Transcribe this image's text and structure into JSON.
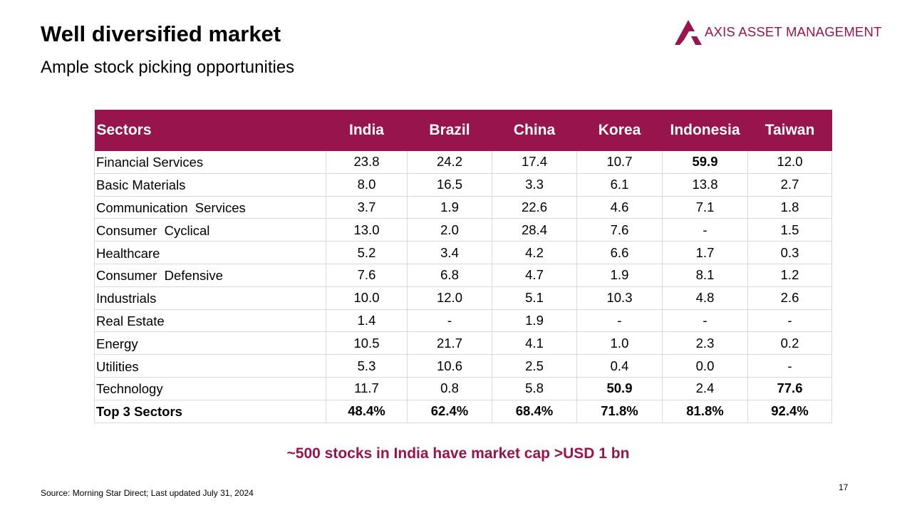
{
  "slide": {
    "title": "Well diversified market",
    "subtitle": "Ample stock picking opportunities",
    "callout": "~500 stocks in India have market cap >USD 1 bn",
    "source": "Source: Morning Star Direct; Last updated July 31, 2024",
    "page_number": "17"
  },
  "logo": {
    "text": "AXIS ASSET MANAGEMENT",
    "color": "#97144d"
  },
  "table": {
    "header_color": "#97144d",
    "columns": [
      "Sectors",
      "India",
      "Brazil",
      "China",
      "Korea",
      "Indonesia",
      "Taiwan"
    ],
    "rows": [
      {
        "cells": [
          "Financial Services",
          "23.8",
          "24.2",
          "17.4",
          "10.7",
          "59.9",
          "12.0"
        ],
        "bold": [
          false,
          false,
          false,
          false,
          false,
          true,
          false
        ]
      },
      {
        "cells": [
          "Basic Materials",
          "8.0",
          "16.5",
          "3.3",
          "6.1",
          "13.8",
          "2.7"
        ],
        "bold": [
          false,
          false,
          false,
          false,
          false,
          false,
          false
        ]
      },
      {
        "cells": [
          "Communication  Services",
          "3.7",
          "1.9",
          "22.6",
          "4.6",
          "7.1",
          "1.8"
        ],
        "bold": [
          false,
          false,
          false,
          false,
          false,
          false,
          false
        ]
      },
      {
        "cells": [
          "Consumer  Cyclical",
          "13.0",
          "2.0",
          "28.4",
          "7.6",
          "-",
          "1.5"
        ],
        "bold": [
          false,
          false,
          false,
          false,
          false,
          false,
          false
        ]
      },
      {
        "cells": [
          "Healthcare",
          "5.2",
          "3.4",
          "4.2",
          "6.6",
          "1.7",
          "0.3"
        ],
        "bold": [
          false,
          false,
          false,
          false,
          false,
          false,
          false
        ]
      },
      {
        "cells": [
          "Consumer  Defensive",
          "7.6",
          "6.8",
          "4.7",
          "1.9",
          "8.1",
          "1.2"
        ],
        "bold": [
          false,
          false,
          false,
          false,
          false,
          false,
          false
        ]
      },
      {
        "cells": [
          "Industrials",
          "10.0",
          "12.0",
          "5.1",
          "10.3",
          "4.8",
          "2.6"
        ],
        "bold": [
          false,
          false,
          false,
          false,
          false,
          false,
          false
        ]
      },
      {
        "cells": [
          "Real Estate",
          "1.4",
          "-",
          "1.9",
          "-",
          "-",
          "-"
        ],
        "bold": [
          false,
          false,
          false,
          false,
          false,
          false,
          false
        ]
      },
      {
        "cells": [
          "Energy",
          "10.5",
          "21.7",
          "4.1",
          "1.0",
          "2.3",
          "0.2"
        ],
        "bold": [
          false,
          false,
          false,
          false,
          false,
          false,
          false
        ]
      },
      {
        "cells": [
          "Utilities",
          "5.3",
          "10.6",
          "2.5",
          "0.4",
          "0.0",
          "-"
        ],
        "bold": [
          false,
          false,
          false,
          false,
          false,
          false,
          false
        ]
      },
      {
        "cells": [
          "Technology",
          "11.7",
          "0.8",
          "5.8",
          "50.9",
          "2.4",
          "77.6"
        ],
        "bold": [
          false,
          false,
          false,
          false,
          true,
          false,
          true
        ]
      }
    ],
    "total_row": [
      "Top 3 Sectors",
      "48.4%",
      "62.4%",
      "68.4%",
      "71.8%",
      "81.8%",
      "92.4%"
    ]
  }
}
